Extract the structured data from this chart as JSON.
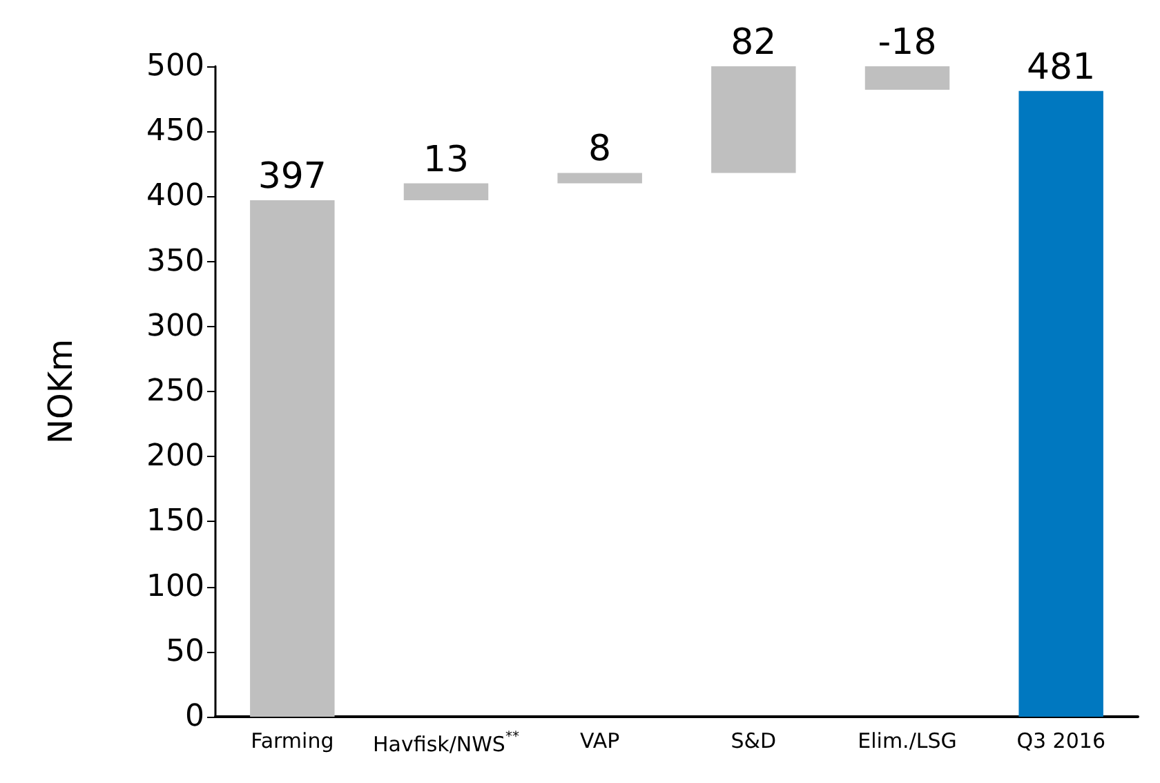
{
  "chart_data": {
    "type": "bar",
    "ylabel": "NOKm",
    "categories": [
      "Farming",
      "Havfisk/NWS$^{**}$",
      "VAP",
      "S&D",
      "Elim./LSG",
      "Q3 2016"
    ],
    "values": [
      397,
      13,
      8,
      82,
      -18,
      481
    ],
    "base": [
      0,
      397,
      410,
      418,
      500,
      0
    ],
    "colors": [
      "#bfbfbf",
      "#bfbfbf",
      "#bfbfbf",
      "#bfbfbf",
      "#bfbfbf",
      "#0078c0"
    ],
    "data_labels": true,
    "ylim": [
      0,
      500
    ],
    "yticks": [
      0,
      50,
      100,
      150,
      200,
      250,
      300,
      350,
      400,
      450,
      500
    ],
    "grid": false
  }
}
